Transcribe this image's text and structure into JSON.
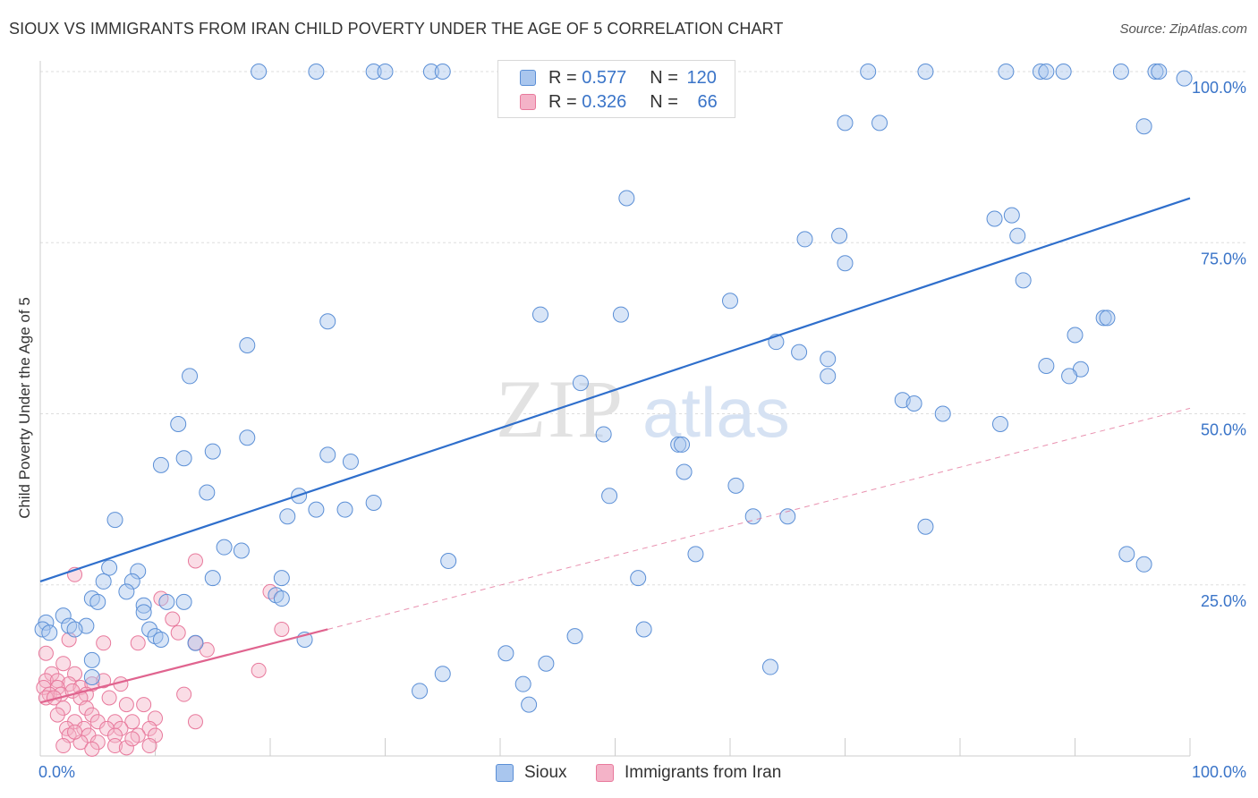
{
  "title": "SIOUX VS IMMIGRANTS FROM IRAN CHILD POVERTY UNDER THE AGE OF 5 CORRELATION CHART",
  "source": "Source: ZipAtlas.com",
  "watermark": {
    "part1": "ZIP",
    "part2": "atlas"
  },
  "colors": {
    "sioux_fill": "#a9c6ee",
    "sioux_stroke": "#5b8fd6",
    "sioux_line": "#2f6fcc",
    "iran_fill": "#f4b3c8",
    "iran_stroke": "#e8799c",
    "iran_line": "#e0648f",
    "axis_text": "#3a74c8",
    "grid": "#dddddd"
  },
  "legend": {
    "rows": [
      {
        "r_label": "R = ",
        "r_value": "0.577",
        "n_label": "N = ",
        "n_value": "120"
      },
      {
        "r_label": "R = ",
        "r_value": "0.326",
        "n_label": "N = ",
        "n_value": "66"
      }
    ]
  },
  "chart_data": {
    "type": "scatter",
    "title": "SIOUX VS IMMIGRANTS FROM IRAN CHILD POVERTY UNDER THE AGE OF 5 CORRELATION CHART",
    "xlabel": "",
    "ylabel": "Child Poverty Under the Age of 5",
    "xlim": [
      0,
      100
    ],
    "ylim": [
      0,
      100
    ],
    "x_tick_labels": [
      "0.0%",
      "100.0%"
    ],
    "y_tick_labels": [
      {
        "value": 25,
        "label": "25.0%"
      },
      {
        "value": 50,
        "label": "50.0%"
      },
      {
        "value": 75,
        "label": "75.0%"
      },
      {
        "value": 100,
        "label": "100.0%"
      }
    ],
    "grid": true,
    "legend_position": "bottom",
    "series": [
      {
        "name": "Sioux",
        "r": 0.577,
        "n": 120,
        "trend": {
          "x": [
            0,
            100
          ],
          "y": [
            25.5,
            81.5
          ]
        },
        "points": [
          [
            19,
            100
          ],
          [
            24,
            100
          ],
          [
            29,
            100
          ],
          [
            30,
            100
          ],
          [
            34,
            100
          ],
          [
            35,
            100
          ],
          [
            43,
            100
          ],
          [
            49,
            100
          ],
          [
            54,
            100
          ],
          [
            72,
            100
          ],
          [
            77,
            100
          ],
          [
            84,
            100
          ],
          [
            87,
            100
          ],
          [
            87.5,
            100
          ],
          [
            89,
            100
          ],
          [
            94,
            100
          ],
          [
            97,
            100
          ],
          [
            97.3,
            100
          ],
          [
            99.5,
            99
          ],
          [
            70,
            92.5
          ],
          [
            73,
            92.5
          ],
          [
            96,
            92
          ],
          [
            51,
            81.5
          ],
          [
            83,
            78.5
          ],
          [
            84.5,
            79
          ],
          [
            66.5,
            75.5
          ],
          [
            69.5,
            76
          ],
          [
            85,
            76
          ],
          [
            70,
            72
          ],
          [
            85.5,
            69.5
          ],
          [
            60,
            66.5
          ],
          [
            43.5,
            64.5
          ],
          [
            50.5,
            64.5
          ],
          [
            92.5,
            64
          ],
          [
            92.8,
            64
          ],
          [
            25,
            63.5
          ],
          [
            90,
            61.5
          ],
          [
            64,
            60.5
          ],
          [
            18,
            60
          ],
          [
            66,
            59
          ],
          [
            68.5,
            58
          ],
          [
            87.5,
            57
          ],
          [
            90.5,
            56.5
          ],
          [
            89.5,
            55.5
          ],
          [
            13,
            55.5
          ],
          [
            68.5,
            55.5
          ],
          [
            47,
            54.5
          ],
          [
            75,
            52
          ],
          [
            76,
            51.5
          ],
          [
            78.5,
            50
          ],
          [
            12,
            48.5
          ],
          [
            83.5,
            48.5
          ],
          [
            49,
            47
          ],
          [
            18,
            46.5
          ],
          [
            55.5,
            45.5
          ],
          [
            55.8,
            45.5
          ],
          [
            15,
            44.5
          ],
          [
            25,
            44
          ],
          [
            12.5,
            43.5
          ],
          [
            27,
            43
          ],
          [
            10.5,
            42.5
          ],
          [
            56,
            41.5
          ],
          [
            60.5,
            39.5
          ],
          [
            14.5,
            38.5
          ],
          [
            22.5,
            38
          ],
          [
            49.5,
            38
          ],
          [
            29,
            37
          ],
          [
            24,
            36
          ],
          [
            26.5,
            36
          ],
          [
            21.5,
            35
          ],
          [
            62,
            35
          ],
          [
            65,
            35
          ],
          [
            6.5,
            34.5
          ],
          [
            77,
            33.5
          ],
          [
            16,
            30.5
          ],
          [
            17.5,
            30
          ],
          [
            94.5,
            29.5
          ],
          [
            57,
            29.5
          ],
          [
            35.5,
            28.5
          ],
          [
            96,
            28
          ],
          [
            6,
            27.5
          ],
          [
            8.5,
            27
          ],
          [
            15,
            26
          ],
          [
            21,
            26
          ],
          [
            52,
            26
          ],
          [
            5.5,
            25.5
          ],
          [
            8,
            25.5
          ],
          [
            7.5,
            24
          ],
          [
            20.5,
            23.5
          ],
          [
            4.5,
            23
          ],
          [
            5,
            22.5
          ],
          [
            12.5,
            22.5
          ],
          [
            21,
            23
          ],
          [
            11,
            22.5
          ],
          [
            9,
            22
          ],
          [
            2,
            20.5
          ],
          [
            9,
            21
          ],
          [
            0.5,
            19.5
          ],
          [
            2.5,
            19
          ],
          [
            4,
            19
          ],
          [
            9.5,
            18.5
          ],
          [
            10,
            17.5
          ],
          [
            0.2,
            18.5
          ],
          [
            3,
            18.5
          ],
          [
            0.8,
            18
          ],
          [
            46.5,
            17.5
          ],
          [
            52.5,
            18.5
          ],
          [
            10.5,
            17
          ],
          [
            23,
            17
          ],
          [
            13.5,
            16.5
          ],
          [
            40.5,
            15
          ],
          [
            4.5,
            14
          ],
          [
            44,
            13.5
          ],
          [
            63.5,
            13
          ],
          [
            35,
            12
          ],
          [
            4.5,
            11.5
          ],
          [
            42,
            10.5
          ],
          [
            33,
            9.5
          ],
          [
            42.5,
            7.5
          ]
        ]
      },
      {
        "name": "Immigrants from Iran",
        "r": 0.326,
        "n": 66,
        "trend_solid": {
          "x": [
            0,
            25
          ],
          "y": [
            7.8,
            18.5
          ]
        },
        "trend_dashed": {
          "x": [
            25,
            100
          ],
          "y": [
            18.5,
            50.8
          ]
        },
        "points": [
          [
            3,
            26.5
          ],
          [
            13.5,
            28.5
          ],
          [
            20,
            24
          ],
          [
            10.5,
            23
          ],
          [
            11.5,
            20
          ],
          [
            21,
            18.5
          ],
          [
            2.5,
            17
          ],
          [
            5.5,
            16.5
          ],
          [
            12,
            18
          ],
          [
            8.5,
            16.5
          ],
          [
            13.5,
            16.5
          ],
          [
            14.5,
            15.5
          ],
          [
            0.5,
            15
          ],
          [
            2,
            13.5
          ],
          [
            1,
            12
          ],
          [
            3,
            12
          ],
          [
            19,
            12.5
          ],
          [
            0.5,
            11
          ],
          [
            1.5,
            11
          ],
          [
            2.5,
            10.5
          ],
          [
            5.5,
            11
          ],
          [
            0.3,
            10
          ],
          [
            1.5,
            10
          ],
          [
            3.5,
            10
          ],
          [
            4.5,
            10.5
          ],
          [
            7,
            10.5
          ],
          [
            0.8,
            9
          ],
          [
            1.8,
            9
          ],
          [
            2.8,
            9.5
          ],
          [
            4,
            9
          ],
          [
            0.5,
            8.5
          ],
          [
            1.2,
            8.5
          ],
          [
            3.5,
            8.5
          ],
          [
            6,
            8.5
          ],
          [
            7.5,
            7.5
          ],
          [
            2,
            7
          ],
          [
            4,
            7
          ],
          [
            9,
            7.5
          ],
          [
            12.5,
            9
          ],
          [
            1.5,
            6
          ],
          [
            4.5,
            6
          ],
          [
            10,
            5.5
          ],
          [
            3,
            5
          ],
          [
            5,
            5
          ],
          [
            6.5,
            5
          ],
          [
            8,
            5
          ],
          [
            13.5,
            5
          ],
          [
            2.3,
            4
          ],
          [
            3.8,
            4
          ],
          [
            5.8,
            4
          ],
          [
            7,
            4
          ],
          [
            9.5,
            4
          ],
          [
            2.5,
            3
          ],
          [
            4.2,
            3
          ],
          [
            6.5,
            3
          ],
          [
            8.5,
            3
          ],
          [
            10,
            3
          ],
          [
            3.5,
            2
          ],
          [
            5,
            2
          ],
          [
            6.5,
            1.5
          ],
          [
            7.5,
            1.2
          ],
          [
            9.5,
            1.5
          ],
          [
            4.5,
            1
          ],
          [
            2,
            1.5
          ],
          [
            8,
            2.5
          ],
          [
            3,
            3.5
          ]
        ]
      }
    ]
  },
  "bottom_legend": {
    "sioux_label": "Sioux",
    "iran_label": "Immigrants from Iran"
  }
}
